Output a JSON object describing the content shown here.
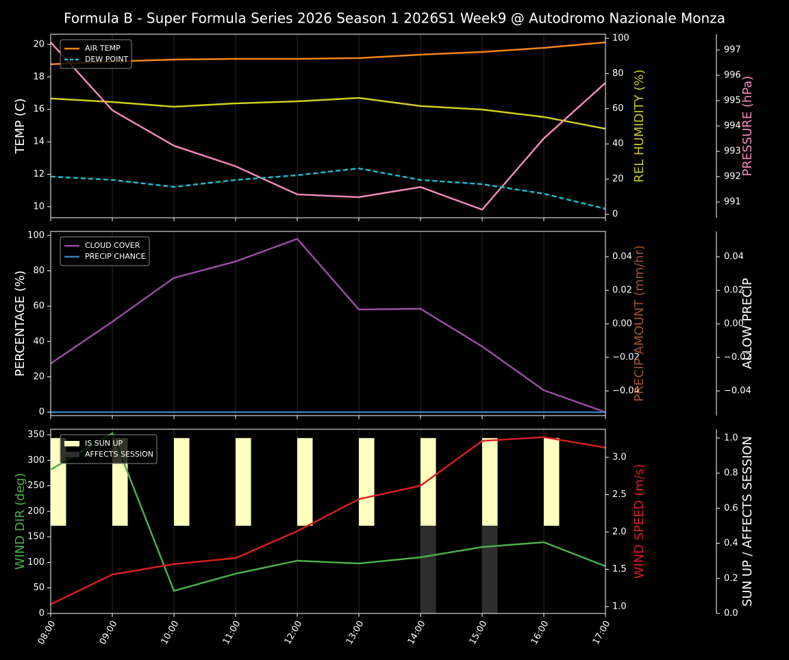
{
  "title": "Formula B - Super Formula Series 2026 Season 1 2026S1 Week9 @ Autodromo Nazionale Monza",
  "chart_data": [
    {
      "type": "line",
      "categories": [
        "08:00",
        "09:00",
        "10:00",
        "11:00",
        "12:00",
        "13:00",
        "14:00",
        "15:00",
        "16:00",
        "17:00"
      ],
      "show_xticklabels": false,
      "ylabel": "TEMP (C)",
      "ylabel_color": "#ffffff",
      "ylim": [
        9.32,
        20.63
      ],
      "yticks": [
        10,
        12,
        14,
        16,
        18,
        20
      ],
      "y2label": "REL HUMIDITY (%)",
      "y2label_color": "#c8c81e",
      "y2lim": [
        -1.95,
        102.3
      ],
      "y2ticks": [
        0,
        20,
        40,
        60,
        80,
        100
      ],
      "y3label": "PRESSURE (hPa)",
      "y3label_color": "#f288bb",
      "y3lim": [
        990.38,
        997.62
      ],
      "y3ticks": [
        991,
        992,
        993,
        994,
        995,
        996,
        997
      ],
      "series": [
        {
          "color": "#cfcf20",
          "axis": "y2",
          "values": [
            65.8,
            63.8,
            61.1,
            63.0,
            64.2,
            66.1,
            61.5,
            59.5,
            55.3,
            48.6
          ]
        },
        {
          "color": "#f288bb",
          "axis": "y3",
          "values": [
            997.3,
            994.62,
            993.22,
            992.41,
            991.3,
            991.19,
            991.59,
            990.7,
            993.51,
            995.7
          ]
        },
        {
          "name": "AIR TEMP",
          "color": "#f58518",
          "axis": "y",
          "values": [
            18.78,
            18.95,
            19.07,
            19.11,
            19.11,
            19.16,
            19.37,
            19.54,
            19.79,
            20.13
          ]
        },
        {
          "name": "DEW POINT",
          "color": "#17becf",
          "axis": "y",
          "style": "dashed",
          "values": [
            11.86,
            11.65,
            11.22,
            11.65,
            11.94,
            12.36,
            11.65,
            11.39,
            10.8,
            9.87
          ]
        }
      ]
    },
    {
      "type": "line",
      "categories": [
        "08:00",
        "09:00",
        "10:00",
        "11:00",
        "12:00",
        "13:00",
        "14:00",
        "15:00",
        "16:00",
        "17:00"
      ],
      "show_xticklabels": false,
      "ylabel": "PERCENTAGE (%)",
      "ylabel_color": "#ffffff",
      "ylim": [
        -1.94,
        102.3
      ],
      "yticks": [
        0,
        20,
        40,
        60,
        80,
        100
      ],
      "y2label": "PRECIP AMOUNT (mm/hr)",
      "y2label_color": "#a0522d",
      "y2lim": [
        -0.0547,
        0.0551
      ],
      "y2ticks": [
        {
          "value": -0.04,
          "label": "−0.04"
        },
        {
          "value": -0.02,
          "label": "−0.02"
        },
        {
          "value": 0,
          "label": "0.00"
        },
        0.02,
        0.04
      ],
      "y3label": "ALLOW PRECIP",
      "y3label_color": "#ffffff",
      "y3lim": [
        -0.0547,
        0.0551
      ],
      "y3ticks": [
        {
          "value": -0.04,
          "label": "−0.04"
        },
        {
          "value": -0.02,
          "label": "−0.02"
        },
        {
          "value": 0,
          "label": "0.00"
        },
        0.02,
        0.04
      ],
      "series": [
        {
          "name": "CLOUD COVER",
          "color": "#984ea3",
          "axis": "y",
          "values": [
            27.5,
            51.2,
            76.0,
            85.3,
            98.1,
            58.1,
            58.5,
            37.2,
            12.4,
            0
          ]
        },
        {
          "name": "PRECIP CHANCE",
          "color": "#377eb8",
          "axis": "y",
          "values": [
            0,
            0,
            0,
            0,
            0,
            0,
            0,
            0,
            0,
            0
          ]
        }
      ]
    },
    {
      "type": "line",
      "categories": [
        "08:00",
        "09:00",
        "10:00",
        "11:00",
        "12:00",
        "13:00",
        "14:00",
        "15:00",
        "16:00",
        "17:00"
      ],
      "show_xticklabels": true,
      "ylabel": "WIND DIR (deg)",
      "ylabel_color": "#4caf4a",
      "ylim": [
        0,
        360.7
      ],
      "yticks": [
        0,
        50,
        100,
        150,
        200,
        250,
        300,
        350
      ],
      "y2label": "WIND SPEED (m/s)",
      "y2label_color": "#d62020",
      "y2lim": [
        0.908,
        3.376
      ],
      "y2ticks": [
        {
          "value": 1,
          "label": "1.0"
        },
        1.5,
        {
          "value": 2,
          "label": "2.0"
        },
        2.5,
        {
          "value": 3,
          "label": "3.0"
        }
      ],
      "y3label": "SUN UP / AFFECTS SESSION",
      "y3label_color": "#ffffff",
      "y3lim": [
        0,
        1.05
      ],
      "y3ticks": [
        {
          "value": 0,
          "label": "0.0"
        },
        0.2,
        0.4,
        0.6,
        0.8,
        {
          "value": 1,
          "label": "1.0"
        }
      ],
      "series": [
        {
          "name": "IS SUN UP",
          "type": "bar",
          "color": "#ffffc0",
          "axis": "y3",
          "bottom": 0.5,
          "bar_width": 0.25,
          "values": [
            0.5,
            0.5,
            0.5,
            0.5,
            0.5,
            0.5,
            0.5,
            0.5,
            0.5,
            0
          ]
        },
        {
          "name": "AFFECTS SESSION",
          "type": "bar",
          "color": "#2e2e2e",
          "axis": "y3",
          "bottom": 0,
          "bar_width": 0.25,
          "values": [
            0,
            0,
            0,
            0,
            0,
            0,
            0.5,
            0.5,
            0,
            0
          ]
        },
        {
          "color": "#4caf4a",
          "axis": "y",
          "values": [
            281.6,
            352.7,
            44.3,
            77.8,
            103.3,
            97.9,
            110.0,
            130.1,
            139.5,
            92.5
          ]
        },
        {
          "color": "#d62020",
          "axis": "y2",
          "values": [
            1.03,
            1.43,
            1.57,
            1.65,
            2.01,
            2.44,
            2.62,
            3.22,
            3.27,
            3.13
          ]
        }
      ]
    }
  ]
}
